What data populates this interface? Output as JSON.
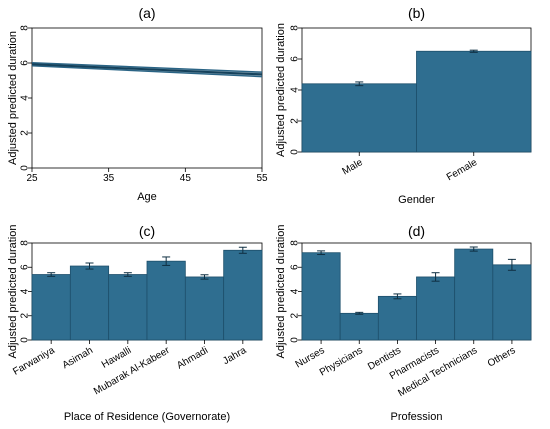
{
  "chart_data": [
    {
      "type": "line",
      "title": "(a)",
      "xlabel": "Age",
      "ylabel": "Adjusted predicted duration",
      "xlim": [
        25,
        55
      ],
      "ylim": [
        0,
        8
      ],
      "x_ticks": [
        "25",
        "35",
        "45",
        "55"
      ],
      "y_ticks": [
        "0",
        "2",
        "4",
        "6",
        "8"
      ],
      "grid": false,
      "line": {
        "x": [
          25,
          55
        ],
        "y": [
          5.93,
          5.35
        ]
      },
      "ci_upper": [
        6.02,
        5.48
      ],
      "ci_lower": [
        5.84,
        5.22
      ],
      "color": "#2a6485"
    },
    {
      "type": "bar",
      "title": "(b)",
      "xlabel": "Gender",
      "ylabel": "Adjusted predicted duration",
      "ylim": [
        0,
        8
      ],
      "y_ticks": [
        "0",
        "2",
        "4",
        "6",
        "8"
      ],
      "categories": [
        "Male",
        "Female"
      ],
      "values": [
        4.4,
        6.5
      ],
      "errors": [
        [
          4.28,
          4.52
        ],
        [
          6.43,
          6.57
        ]
      ],
      "color": "#2f6e90"
    },
    {
      "type": "bar",
      "title": "(c)",
      "xlabel": "Place of Residence (Governorate)",
      "ylabel": "Adjusted predicted duration",
      "ylim": [
        0,
        8
      ],
      "y_ticks": [
        "0",
        "2",
        "4",
        "6",
        "8"
      ],
      "categories": [
        "Farwaniya",
        "Asimah",
        "Hawalli",
        "Mubarak Al-Kabeer",
        "Ahmadi",
        "Jahra"
      ],
      "values": [
        5.4,
        6.1,
        5.4,
        6.5,
        5.2,
        7.4
      ],
      "errors": [
        [
          5.25,
          5.55
        ],
        [
          5.85,
          6.35
        ],
        [
          5.25,
          5.55
        ],
        [
          6.15,
          6.85
        ],
        [
          5.02,
          5.38
        ],
        [
          7.15,
          7.65
        ]
      ],
      "color": "#2f6e90"
    },
    {
      "type": "bar",
      "title": "(d)",
      "xlabel": "Profession",
      "ylabel": "Adjusted predicted duration",
      "ylim": [
        0,
        8
      ],
      "y_ticks": [
        "0",
        "2",
        "4",
        "6",
        "8"
      ],
      "categories": [
        "Nurses",
        "Physicians",
        "Dentists",
        "Pharmacists",
        "Medical Technicians",
        "Others"
      ],
      "values": [
        7.2,
        2.2,
        3.6,
        5.2,
        7.5,
        6.2
      ],
      "errors": [
        [
          7.05,
          7.35
        ],
        [
          2.12,
          2.28
        ],
        [
          3.4,
          3.8
        ],
        [
          4.85,
          5.55
        ],
        [
          7.33,
          7.67
        ],
        [
          5.75,
          6.65
        ]
      ],
      "color": "#2f6e90"
    }
  ]
}
